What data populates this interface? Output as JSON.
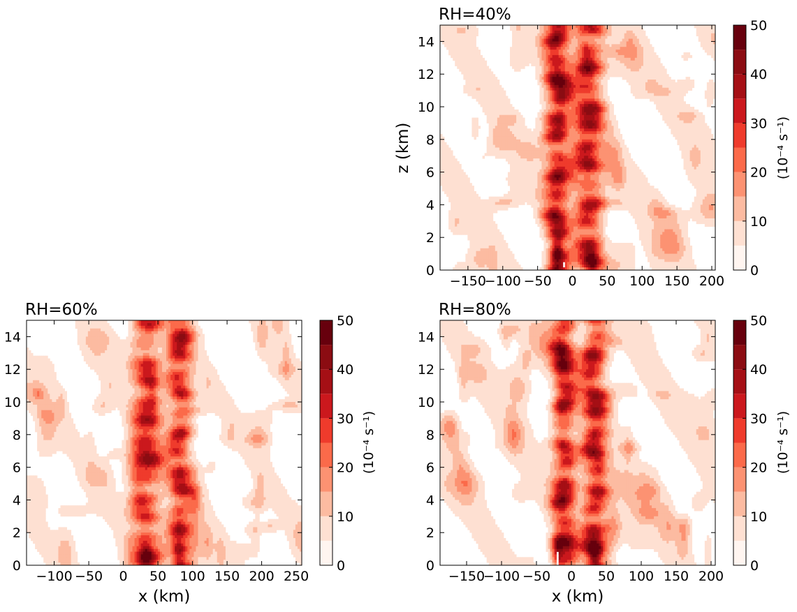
{
  "chart_data": [
    {
      "type": "heatmap",
      "title": "RH=40%",
      "ylabel": "z (km)",
      "xlabel": "",
      "xlim": [
        -190,
        205
      ],
      "ylim": [
        0,
        15
      ],
      "xticks": [
        -150,
        -100,
        -50,
        0,
        50,
        100,
        150,
        200
      ],
      "xtick_labels": [
        "−150",
        "−100",
        "−50",
        "0",
        "50",
        "100",
        "150",
        "200"
      ],
      "yticks": [
        0,
        2,
        4,
        6,
        8,
        10,
        12,
        14
      ],
      "ytick_labels": [
        "0",
        "2",
        "4",
        "6",
        "8",
        "10",
        "12",
        "14"
      ],
      "colorbar": {
        "label": "(10⁻⁴ s⁻¹)",
        "ticks": [
          0,
          10,
          20,
          30,
          40,
          50
        ],
        "tick_labels": [
          "0",
          "10",
          "20",
          "30",
          "40",
          "50"
        ]
      },
      "columns": [
        {
          "center": -22,
          "width": 18,
          "peak": 36
        },
        {
          "center": 25,
          "width": 20,
          "peak": 32
        }
      ],
      "hotspots": [
        {
          "x": -22,
          "z": 1.1,
          "value": 50
        },
        {
          "x": 28,
          "z": 0.6,
          "value": 45
        }
      ],
      "blank": [
        {
          "x": -12,
          "z": 0.3,
          "w": 4,
          "h": 0.4
        }
      ],
      "background": 7,
      "seed": 11
    },
    {
      "type": "heatmap",
      "title": "RH=60%",
      "ylabel": "",
      "xlabel": "x (km)",
      "xlim": [
        -140,
        258
      ],
      "ylim": [
        0,
        15
      ],
      "xticks": [
        -100,
        -50,
        0,
        50,
        100,
        150,
        200,
        250
      ],
      "xtick_labels": [
        "−100",
        "−50",
        "0",
        "50",
        "100",
        "150",
        "200",
        "250"
      ],
      "yticks": [
        0,
        2,
        4,
        6,
        8,
        10,
        12,
        14
      ],
      "ytick_labels": [
        "0",
        "2",
        "4",
        "6",
        "8",
        "10",
        "12",
        "14"
      ],
      "colorbar": {
        "label": "(10⁻⁴ s⁻¹)",
        "ticks": [
          0,
          10,
          20,
          30,
          40,
          50
        ],
        "tick_labels": [
          "0",
          "10",
          "20",
          "30",
          "40",
          "50"
        ]
      },
      "columns": [
        {
          "center": 35,
          "width": 22,
          "peak": 28
        },
        {
          "center": 82,
          "width": 18,
          "peak": 31
        }
      ],
      "hotspots": [
        {
          "x": 32,
          "z": 0.5,
          "value": 45
        },
        {
          "x": 80,
          "z": 0.6,
          "value": 45
        }
      ],
      "blank": [],
      "background": 6,
      "seed": 23
    },
    {
      "type": "heatmap",
      "title": "RH=80%",
      "ylabel": "",
      "xlabel": "x (km)",
      "xlim": [
        -188,
        206
      ],
      "ylim": [
        0,
        15
      ],
      "xticks": [
        -150,
        -100,
        -50,
        0,
        50,
        100,
        150,
        200
      ],
      "xtick_labels": [
        "−150",
        "−100",
        "−50",
        "0",
        "50",
        "100",
        "150",
        "200"
      ],
      "yticks": [
        0,
        2,
        4,
        6,
        8,
        10,
        12,
        14
      ],
      "ytick_labels": [
        "0",
        "2",
        "4",
        "6",
        "8",
        "10",
        "12",
        "14"
      ],
      "colorbar": {
        "label": "(10⁻⁴ s⁻¹)",
        "ticks": [
          0,
          10,
          20,
          30,
          40,
          50
        ],
        "tick_labels": [
          "0",
          "10",
          "20",
          "30",
          "40",
          "50"
        ]
      },
      "columns": [
        {
          "center": -10,
          "width": 17,
          "peak": 33
        },
        {
          "center": 33,
          "width": 18,
          "peak": 34
        }
      ],
      "hotspots": [
        {
          "x": -20,
          "z": 0.9,
          "value": 50
        },
        {
          "x": 33,
          "z": 0.6,
          "value": 50
        }
      ],
      "blank": [
        {
          "x": -20,
          "z": 0.3,
          "w": 5,
          "h": 1.2
        }
      ],
      "background": 7,
      "seed": 37
    }
  ],
  "colormap": {
    "levels": [
      0,
      5,
      10,
      15,
      20,
      25,
      30,
      35,
      40,
      45,
      50
    ],
    "colors": [
      "#fff5f0",
      "#fee0d2",
      "#fcbba1",
      "#fc9272",
      "#fb6a4a",
      "#ef3b2c",
      "#cb181d",
      "#a50f15",
      "#8b0c12",
      "#67000d"
    ]
  }
}
